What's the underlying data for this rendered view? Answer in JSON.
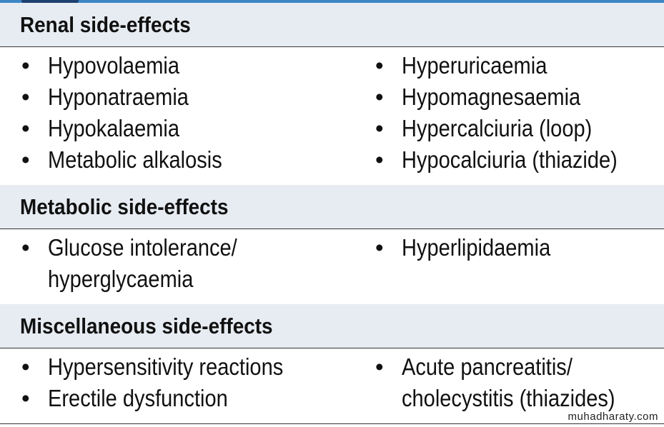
{
  "sections": [
    {
      "title": "Renal side-effects",
      "left": [
        "Hypovolaemia",
        "Hyponatraemia",
        "Hypokalaemia",
        "Metabolic alkalosis"
      ],
      "right": [
        "Hyperuricaemia",
        "Hypomagnesaemia",
        "Hypercalciuria (loop)",
        "Hypocalciuria (thiazide)"
      ]
    },
    {
      "title": "Metabolic side-effects",
      "left": [
        "Glucose intolerance/\nhyperglycaemia"
      ],
      "right": [
        "Hyperlipidaemia"
      ]
    },
    {
      "title": "Miscellaneous side-effects",
      "left": [
        "Hypersensitivity reactions",
        "Erectile dysfunction"
      ],
      "right": [
        "Acute pancreatitis/\ncholecystitis (thiazides)"
      ]
    }
  ],
  "watermark": "muhadharaty.com"
}
